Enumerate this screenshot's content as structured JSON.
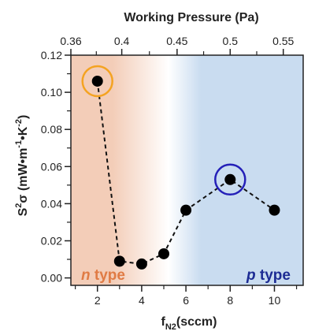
{
  "chart_data": {
    "type": "scatter",
    "title": "",
    "xlabel_top": "Working Pressure (Pa)",
    "ylabel": {
      "pre": "S",
      "sup1": "2",
      "mid": "σ (mW•m",
      "sup2": "-1",
      "mid2": "•K",
      "sup3": "-2",
      "post": ")"
    },
    "xlabel": {
      "base": "f",
      "sub": "N2",
      "rest": "(sccm)"
    },
    "xlim": [
      0.8,
      11.3
    ],
    "ylim": [
      -0.004,
      0.12
    ],
    "x_ticks": [
      2,
      4,
      6,
      8,
      10
    ],
    "x_minor_ticks": [
      1,
      3,
      5,
      7,
      9,
      11
    ],
    "y_ticks": [
      0.0,
      0.02,
      0.04,
      0.06,
      0.08,
      0.1,
      0.12
    ],
    "y_tick_labels": [
      "0.00",
      "0.02",
      "0.04",
      "0.06",
      "0.08",
      "0.10",
      "0.12"
    ],
    "top_ticks": [
      {
        "x": 0.8,
        "label": "0.36"
      },
      {
        "x": 3.1,
        "label": "0.4"
      },
      {
        "x": 5.6,
        "label": "0.45"
      },
      {
        "x": 8.0,
        "label": "0.5"
      },
      {
        "x": 10.4,
        "label": "0.55"
      }
    ],
    "series": [
      {
        "x": [
          2,
          3,
          4,
          5,
          6,
          8,
          10
        ],
        "y": [
          0.106,
          0.009,
          0.0075,
          0.013,
          0.0365,
          0.053,
          0.0365
        ],
        "marker_color": "#000000",
        "line_style": "dashed"
      }
    ],
    "highlights": [
      {
        "x": 2,
        "y": 0.106,
        "color": "#f4a321"
      },
      {
        "x": 8,
        "y": 0.053,
        "color": "#2420b8"
      }
    ],
    "regions": [
      {
        "label_italic": "n",
        "label_rest": " type",
        "color": "#e07b44",
        "bg": "#f3cdb8"
      },
      {
        "label_italic": "p",
        "label_rest": " type",
        "color": "#1d2c94",
        "bg": "#c9dcf0"
      }
    ],
    "grid": false
  }
}
